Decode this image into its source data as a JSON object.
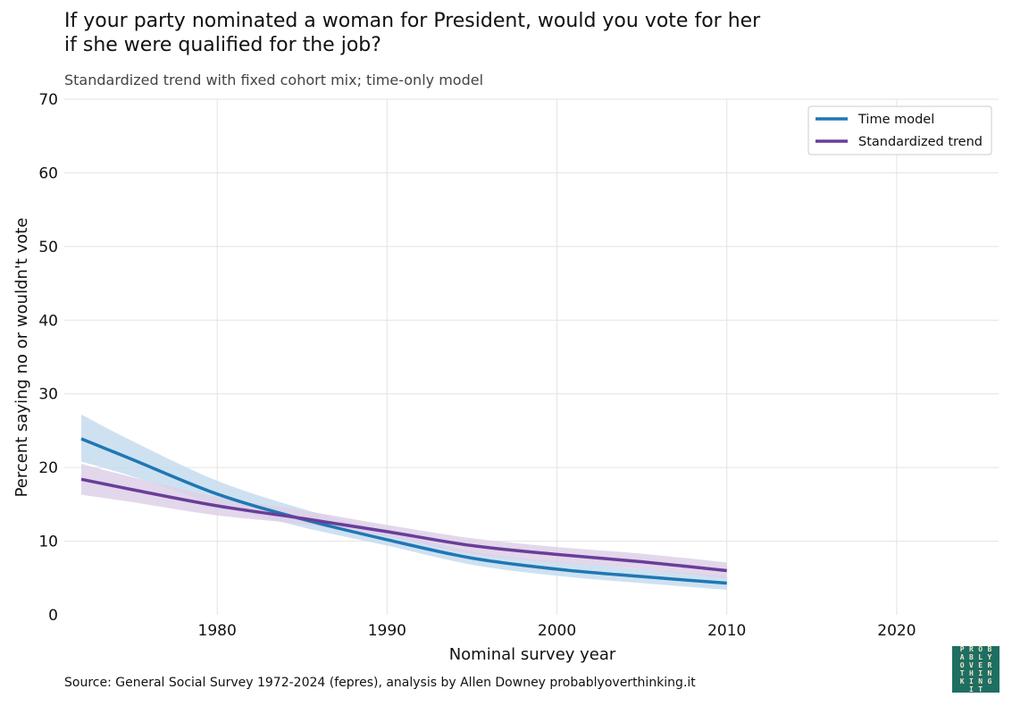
{
  "header": {
    "title_line1": "If your party nominated a woman for President, would you vote for her",
    "title_line2": "if she were qualified for the job?",
    "subtitle": "Standardized trend with fixed cohort mix; time-only model"
  },
  "footer": {
    "source": "Source: General Social Survey 1972-2024 (fepres), analysis by Allen Downey probablyoverthinking.it",
    "logo_letters": [
      "P",
      "R",
      "O",
      "B",
      "A",
      "B",
      "L",
      "Y",
      "O",
      "V",
      "E",
      "R",
      "T",
      "H",
      "I",
      "N",
      "K",
      "I",
      "N",
      "G",
      " ",
      "I",
      "T",
      ""
    ]
  },
  "chart_data": {
    "type": "line",
    "xlabel": "Nominal survey year",
    "ylabel": "Percent saying no or wouldn't vote",
    "xlim": [
      1971,
      2026
    ],
    "ylim": [
      0,
      70
    ],
    "xticks": [
      1980,
      1990,
      2000,
      2010,
      2020
    ],
    "yticks": [
      0,
      10,
      20,
      30,
      40,
      50,
      60,
      70
    ],
    "grid": true,
    "legend_position": "top-right",
    "series": [
      {
        "name": "Time model",
        "color": "#1f77b4",
        "band_color": "#c6dcef",
        "x": [
          1972,
          1975,
          1980,
          1985,
          1990,
          1995,
          2000,
          2005,
          2010
        ],
        "y": [
          23.9,
          21.1,
          16.4,
          13.0,
          10.2,
          7.7,
          6.2,
          5.2,
          4.3
        ],
        "lower": [
          20.8,
          18.8,
          15.0,
          11.9,
          9.4,
          6.8,
          5.3,
          4.3,
          3.4
        ],
        "upper": [
          27.2,
          23.6,
          18.2,
          14.4,
          11.3,
          8.6,
          7.2,
          6.2,
          5.3
        ]
      },
      {
        "name": "Standardized trend",
        "color": "#6a3d9a",
        "band_color": "#ddd0e8",
        "x": [
          1972,
          1975,
          1980,
          1985,
          1990,
          1995,
          2000,
          2005,
          2010
        ],
        "y": [
          18.4,
          17.0,
          14.8,
          13.1,
          11.3,
          9.4,
          8.2,
          7.2,
          6.0
        ],
        "lower": [
          16.3,
          15.3,
          13.5,
          12.3,
          10.6,
          8.3,
          7.1,
          6.2,
          4.9
        ],
        "upper": [
          20.5,
          18.7,
          16.0,
          14.2,
          12.2,
          10.4,
          9.2,
          8.3,
          7.1
        ]
      }
    ]
  }
}
